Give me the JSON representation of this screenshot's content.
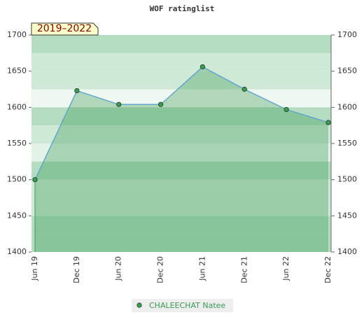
{
  "chart_data": {
    "type": "line",
    "title": "WOF ratinglist",
    "annotation": "2019–2022",
    "categories": [
      "Jun 19",
      "Dec 19",
      "Jun 20",
      "Dec 20",
      "Jun 21",
      "Dec 21",
      "Jun 22",
      "Dec 22"
    ],
    "series": [
      {
        "name": "CHALEECHAT Natee",
        "color": "#3c9a55",
        "values": [
          1500,
          1623,
          1604,
          1604,
          1656,
          1625,
          1597,
          1579
        ]
      }
    ],
    "ylim": [
      1400,
      1700
    ],
    "yticks": [
      1400,
      1450,
      1500,
      1550,
      1600,
      1650,
      1700
    ],
    "y2lim": [
      1400,
      1700
    ],
    "y2ticks": [
      1400,
      1450,
      1500,
      1550,
      1600,
      1650,
      1700
    ]
  }
}
